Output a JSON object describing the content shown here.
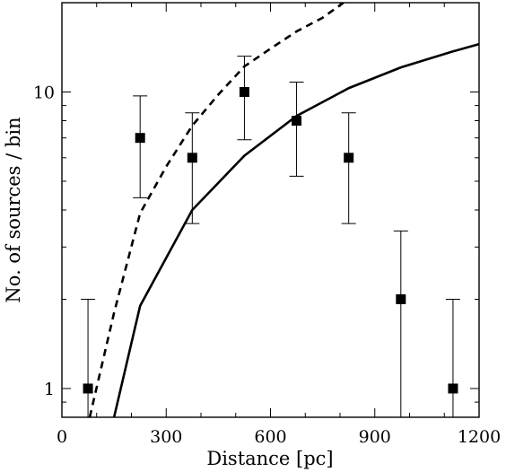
{
  "chart_data": {
    "type": "scatter",
    "title": "",
    "xlabel": "Distance [pc]",
    "ylabel": "No. of sources / bin",
    "xlim": [
      0,
      1200
    ],
    "ylim": [
      0.8,
      20
    ],
    "yscale": "log",
    "grid": false,
    "xticks": [
      0,
      300,
      600,
      900,
      1200
    ],
    "xtick_labels": [
      "0",
      "300",
      "600",
      "900",
      "1200"
    ],
    "yticks": [
      1,
      10
    ],
    "ytick_labels": [
      "1",
      "10"
    ],
    "series": [
      {
        "kind": "points-with-errorbars",
        "marker": "filled-square",
        "color": "#000000",
        "points": [
          {
            "x": 75,
            "y": 1,
            "ylo": 0.8,
            "yhi": 2.0
          },
          {
            "x": 225,
            "y": 7,
            "ylo": 4.4,
            "yhi": 9.7
          },
          {
            "x": 375,
            "y": 6,
            "ylo": 3.6,
            "yhi": 8.5
          },
          {
            "x": 525,
            "y": 10,
            "ylo": 6.9,
            "yhi": 13.2
          },
          {
            "x": 675,
            "y": 8,
            "ylo": 5.2,
            "yhi": 10.8
          },
          {
            "x": 825,
            "y": 6,
            "ylo": 3.6,
            "yhi": 8.5
          },
          {
            "x": 975,
            "y": 2,
            "ylo": 0.8,
            "yhi": 3.4
          },
          {
            "x": 1125,
            "y": 1,
            "ylo": 0.8,
            "yhi": 2.0
          }
        ]
      },
      {
        "kind": "line",
        "style": "solid",
        "color": "#000000",
        "points": [
          {
            "x": 150,
            "y": 0.8
          },
          {
            "x": 225,
            "y": 1.9
          },
          {
            "x": 375,
            "y": 4.0
          },
          {
            "x": 525,
            "y": 6.1
          },
          {
            "x": 675,
            "y": 8.3
          },
          {
            "x": 825,
            "y": 10.3
          },
          {
            "x": 975,
            "y": 12.1
          },
          {
            "x": 1125,
            "y": 13.7
          },
          {
            "x": 1200,
            "y": 14.5
          }
        ]
      },
      {
        "kind": "line",
        "style": "dashed",
        "color": "#000000",
        "points": [
          {
            "x": 80,
            "y": 0.8
          },
          {
            "x": 150,
            "y": 1.8
          },
          {
            "x": 225,
            "y": 3.9
          },
          {
            "x": 300,
            "y": 5.6
          },
          {
            "x": 375,
            "y": 7.7
          },
          {
            "x": 450,
            "y": 9.8
          },
          {
            "x": 525,
            "y": 12.2
          },
          {
            "x": 600,
            "y": 14.0
          },
          {
            "x": 675,
            "y": 16.0
          },
          {
            "x": 750,
            "y": 17.8
          },
          {
            "x": 810,
            "y": 20.0
          }
        ]
      }
    ]
  }
}
